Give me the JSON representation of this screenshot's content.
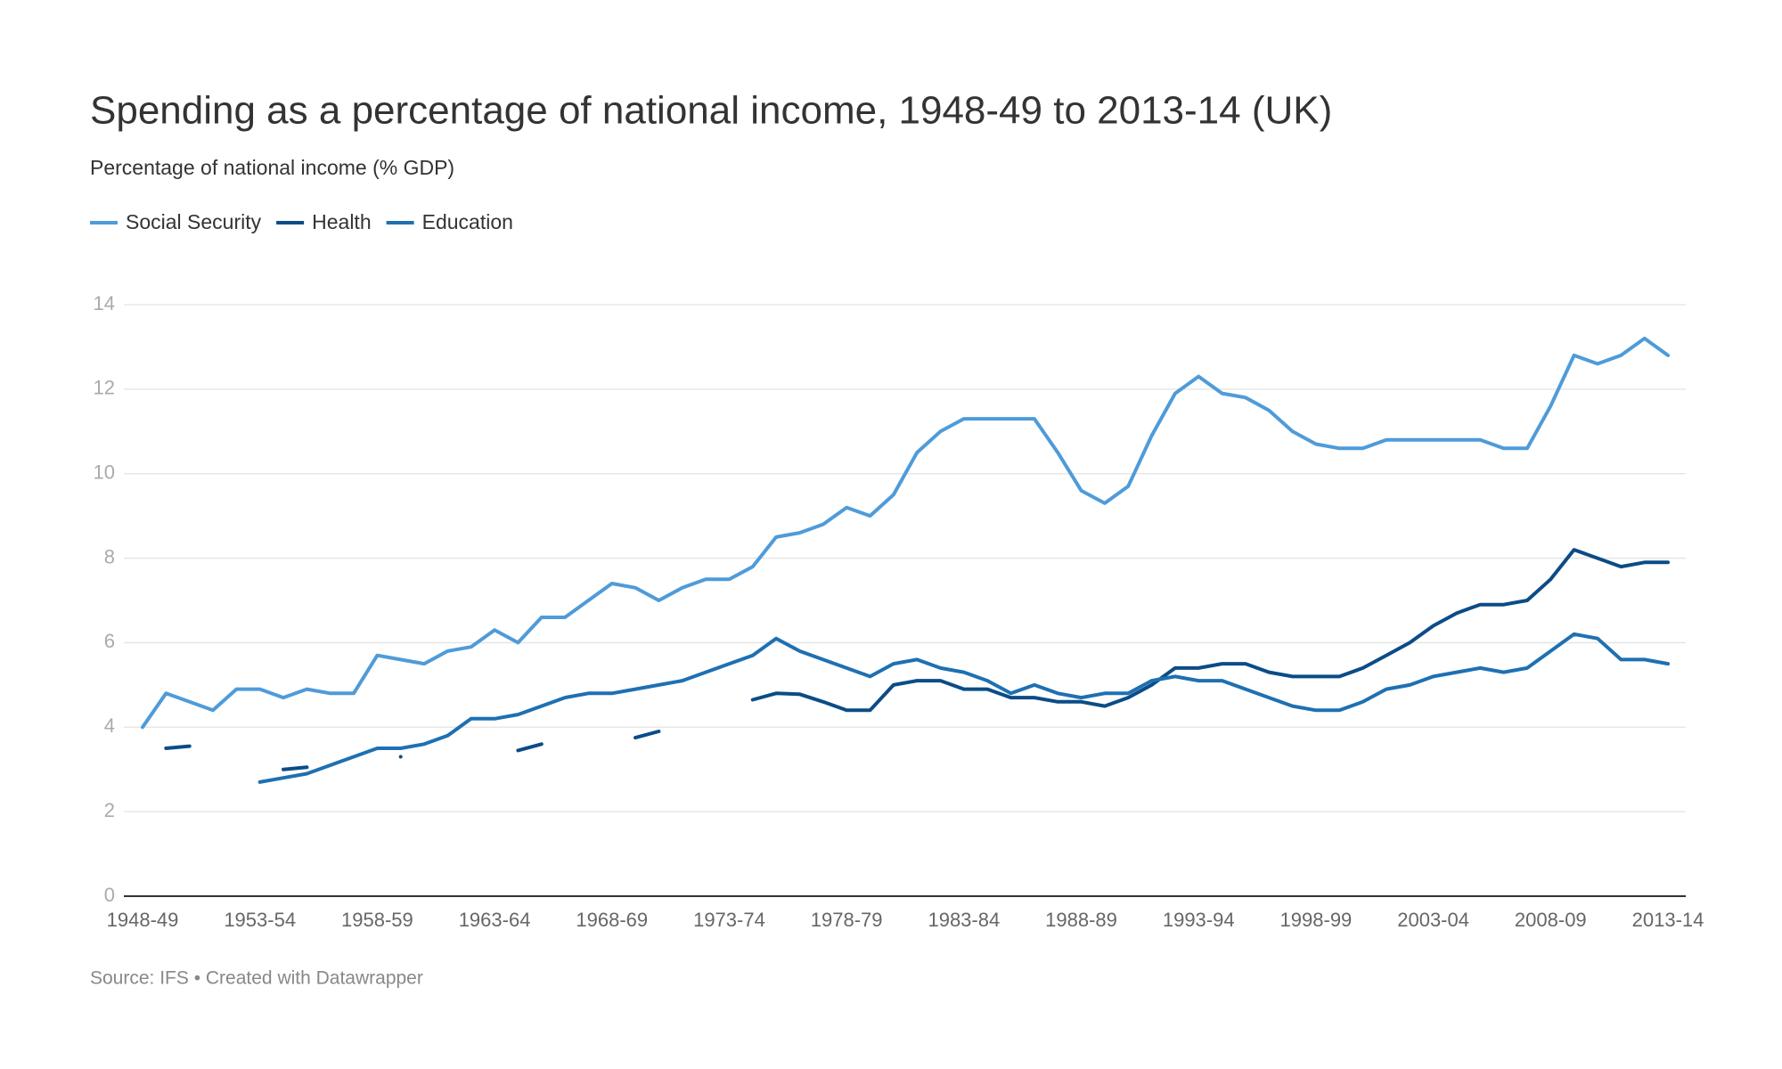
{
  "chart_data": {
    "type": "line",
    "title": "Spending as a percentage of national income, 1948-49 to 2013-14 (UK)",
    "subtitle": "Percentage of national income (% GDP)",
    "source": "Source: IFS • Created with Datawrapper",
    "categories": [
      "1948-49",
      null,
      null,
      null,
      null,
      "1953-54",
      null,
      null,
      null,
      null,
      "1958-59",
      null,
      null,
      null,
      null,
      "1963-64",
      null,
      null,
      null,
      null,
      "1968-69",
      null,
      null,
      null,
      null,
      "1973-74",
      null,
      null,
      null,
      null,
      "1978-79",
      null,
      null,
      null,
      null,
      "1983-84",
      null,
      null,
      null,
      null,
      "1988-89",
      null,
      null,
      null,
      null,
      "1993-94",
      null,
      null,
      null,
      null,
      "1998-99",
      null,
      null,
      null,
      null,
      "2003-04",
      null,
      null,
      null,
      null,
      "2008-09",
      null,
      null,
      null,
      null,
      "2013-14"
    ],
    "series": [
      {
        "name": "Social Security",
        "color": "#4f9bd9",
        "values": [
          4.0,
          4.8,
          4.6,
          4.4,
          4.9,
          4.9,
          4.7,
          4.9,
          4.8,
          4.8,
          5.7,
          5.6,
          5.5,
          5.8,
          5.9,
          6.3,
          6.0,
          6.6,
          6.6,
          7.0,
          7.4,
          7.3,
          7.0,
          7.3,
          7.5,
          7.5,
          7.8,
          8.5,
          8.6,
          8.8,
          9.2,
          9.0,
          9.5,
          10.5,
          11.0,
          11.3,
          11.3,
          11.3,
          11.3,
          10.5,
          9.6,
          9.3,
          9.7,
          10.9,
          11.9,
          12.3,
          11.9,
          11.8,
          11.5,
          11.0,
          10.7,
          10.6,
          10.6,
          10.8,
          10.8,
          10.8,
          10.8,
          10.8,
          10.6,
          10.6,
          11.6,
          12.8,
          12.6,
          12.8,
          13.2,
          12.8
        ]
      },
      {
        "name": "Health",
        "color": "#0b4c87",
        "values": [
          null,
          3.5,
          3.55,
          null,
          null,
          null,
          3.0,
          3.05,
          null,
          null,
          null,
          3.3,
          null,
          null,
          null,
          null,
          3.45,
          3.6,
          null,
          null,
          null,
          3.75,
          3.9,
          null,
          null,
          null,
          4.65,
          4.8,
          4.78,
          4.6,
          4.4,
          4.4,
          5.0,
          5.1,
          5.1,
          4.9,
          4.9,
          4.7,
          4.7,
          4.6,
          4.6,
          4.5,
          4.7,
          5.0,
          5.4,
          5.4,
          5.5,
          5.5,
          5.3,
          5.2,
          5.2,
          5.2,
          5.4,
          5.7,
          6.0,
          6.4,
          6.7,
          6.9,
          6.9,
          7.0,
          7.5,
          8.2,
          8.0,
          7.8,
          7.9,
          7.9
        ]
      },
      {
        "name": "Education",
        "color": "#1e70b2",
        "values": [
          null,
          null,
          null,
          null,
          null,
          2.7,
          2.8,
          2.9,
          3.1,
          3.3,
          3.5,
          3.5,
          3.6,
          3.8,
          4.2,
          4.2,
          4.3,
          4.5,
          4.7,
          4.8,
          4.8,
          4.9,
          5.0,
          5.1,
          5.3,
          5.5,
          5.7,
          6.1,
          5.8,
          5.6,
          5.4,
          5.2,
          5.5,
          5.6,
          5.4,
          5.3,
          5.1,
          4.8,
          5.0,
          4.8,
          4.7,
          4.8,
          4.8,
          5.1,
          5.2,
          5.1,
          5.1,
          4.9,
          4.7,
          4.5,
          4.4,
          4.4,
          4.6,
          4.9,
          5.0,
          5.2,
          5.3,
          5.4,
          5.3,
          5.4,
          5.8,
          6.2,
          6.1,
          5.6,
          5.6,
          5.5
        ]
      }
    ],
    "ylim": [
      0,
      14
    ],
    "yticks": [
      0,
      2,
      4,
      6,
      8,
      10,
      12,
      14
    ],
    "grid": true
  }
}
